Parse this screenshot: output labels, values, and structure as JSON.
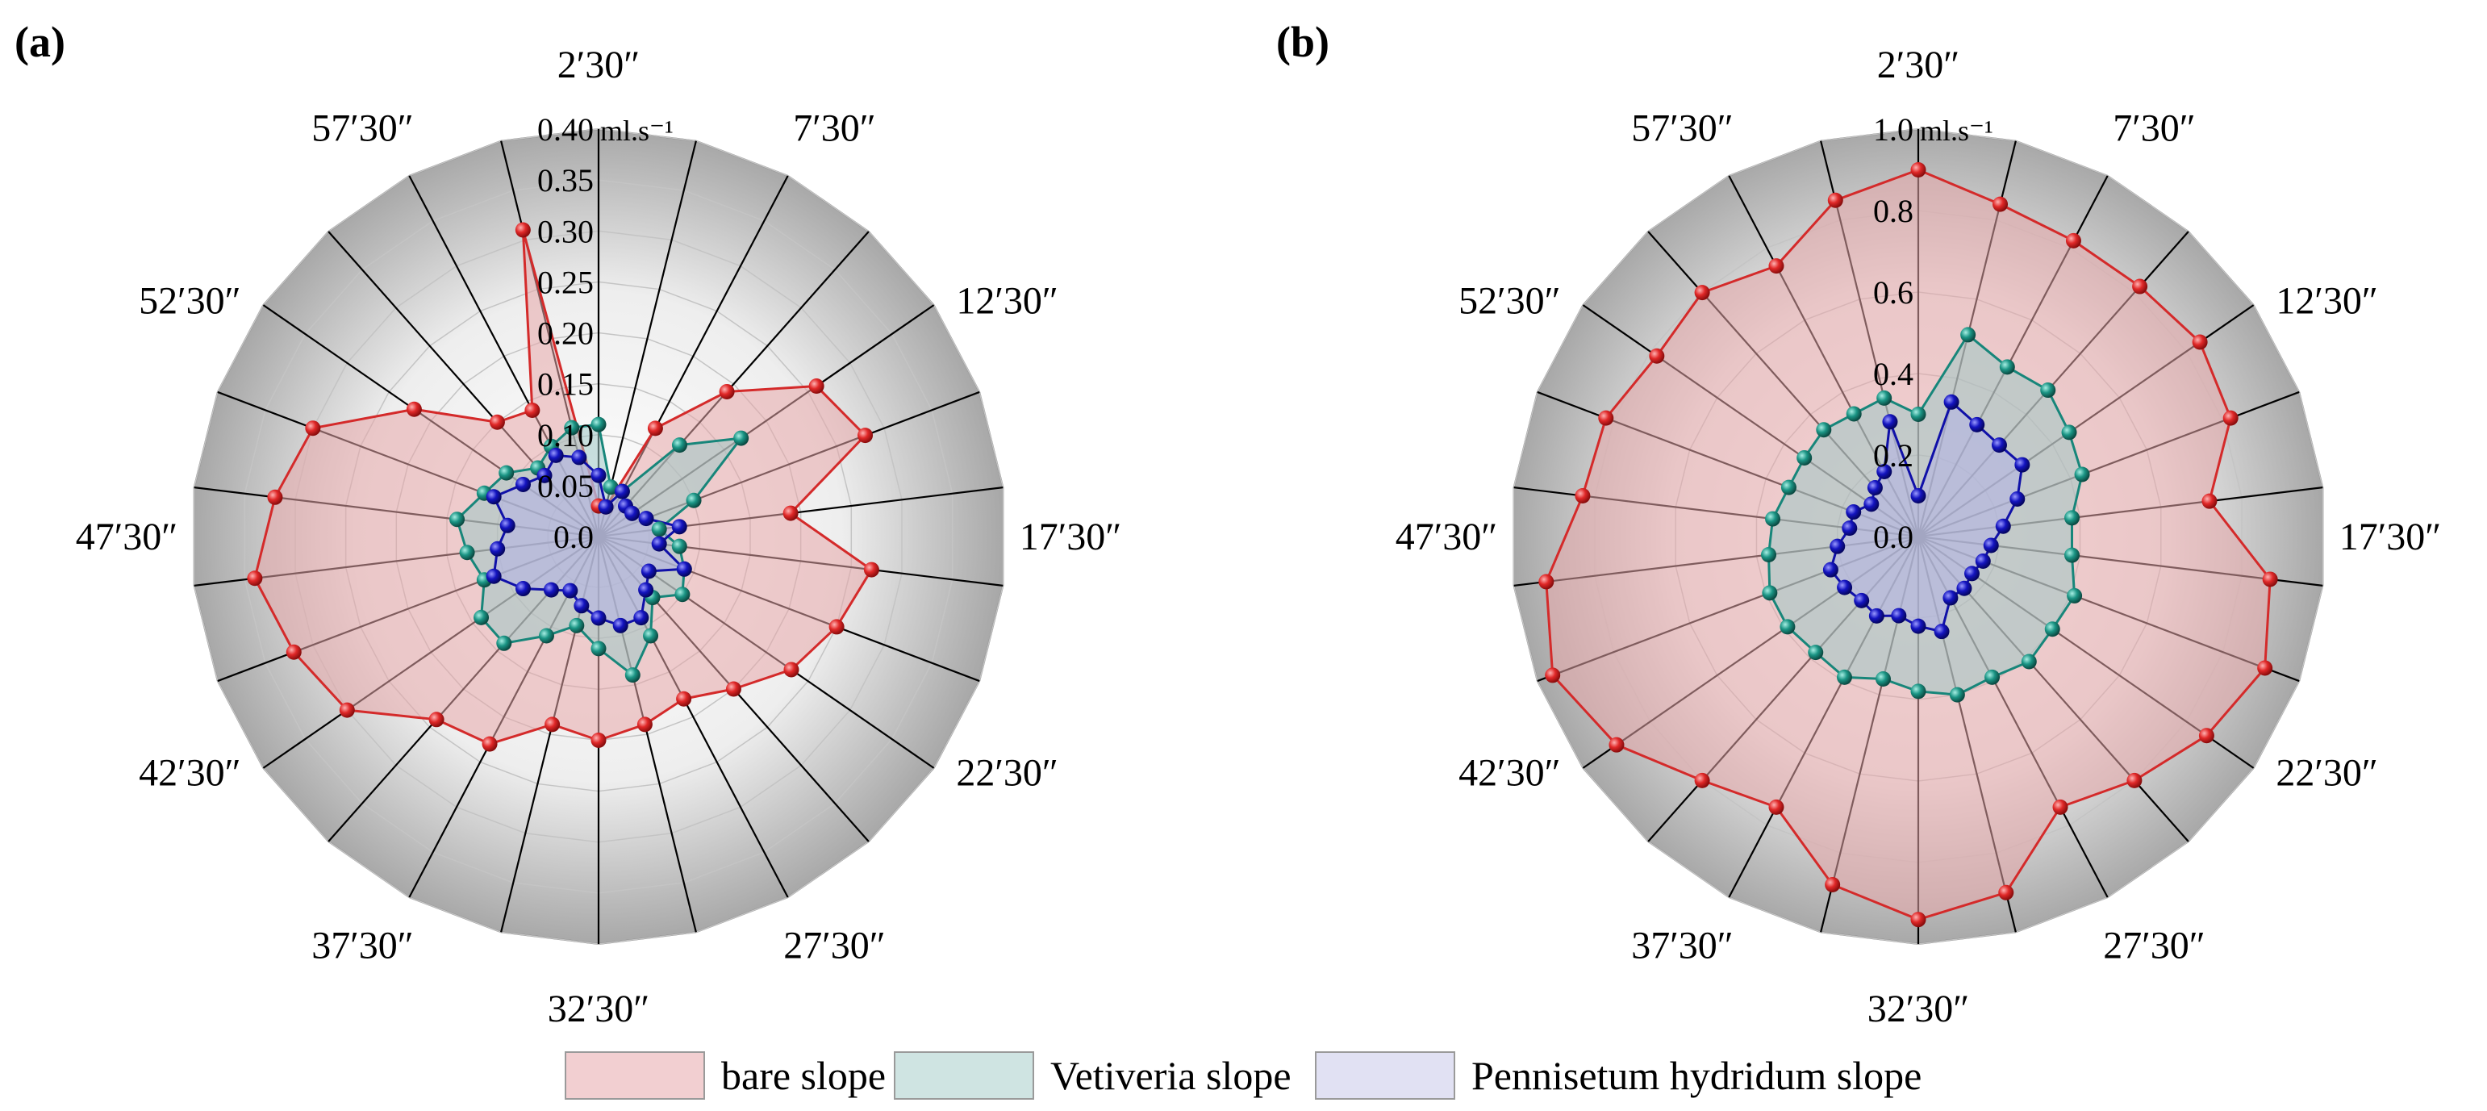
{
  "chart_data": [
    {
      "type": "radar",
      "panel_label": "(a)",
      "unit_label": "ml.s⁻¹",
      "r_max": 0.4,
      "r_ticks": [
        "0.0",
        "0.05",
        "0.10",
        "0.15",
        "0.20",
        "0.25",
        "0.30",
        "0.35",
        "0.40"
      ],
      "direction_labels": [
        "2′30″",
        "7′30″",
        "12′30″",
        "17′30″",
        "22′30″",
        "27′30″",
        "32′30″",
        "37′30″",
        "42′30″",
        "47′30″",
        "52′30″",
        "57′30″"
      ],
      "series": [
        {
          "name": "bare slope",
          "values": [
            0.03,
            0.03,
            0.12,
            0.19,
            0.26,
            0.28,
            0.19,
            0.27,
            0.25,
            0.23,
            0.2,
            0.18,
            0.19,
            0.2,
            0.19,
            0.23,
            0.24,
            0.3,
            0.32,
            0.34,
            0.32,
            0.3,
            0.22,
            0.15,
            0.14,
            0.31
          ]
        },
        {
          "name": "Vetiveria slope",
          "values": [
            0.11,
            0.05,
            0.05,
            0.12,
            0.17,
            0.1,
            0.06,
            0.08,
            0.09,
            0.1,
            0.08,
            0.11,
            0.14,
            0.11,
            0.09,
            0.11,
            0.14,
            0.14,
            0.12,
            0.13,
            0.14,
            0.12,
            0.11,
            0.09,
            0.1,
            0.11
          ]
        },
        {
          "name": "Pennisetum hydridum slope",
          "values": [
            0.06,
            0.03,
            0.05,
            0.04,
            0.04,
            0.05,
            0.08,
            0.06,
            0.09,
            0.06,
            0.07,
            0.09,
            0.09,
            0.08,
            0.07,
            0.06,
            0.07,
            0.09,
            0.11,
            0.1,
            0.09,
            0.11,
            0.09,
            0.08,
            0.09,
            0.08
          ]
        }
      ]
    },
    {
      "type": "radar",
      "panel_label": "(b)",
      "unit_label": "ml.s⁻¹",
      "r_max": 1.0,
      "r_ticks": [
        "0.0",
        "0.2",
        "0.4",
        "0.6",
        "0.8",
        "1.0"
      ],
      "direction_labels": [
        "2′30″",
        "7′30″",
        "12′30″",
        "17′30″",
        "22′30″",
        "27′30″",
        "32′30″",
        "37′30″",
        "42′30″",
        "47′30″",
        "52′30″",
        "57′30″"
      ],
      "series": [
        {
          "name": "bare slope",
          "values": [
            0.9,
            0.84,
            0.82,
            0.82,
            0.84,
            0.82,
            0.72,
            0.87,
            0.91,
            0.86,
            0.8,
            0.75,
            0.9,
            0.94,
            0.88,
            0.75,
            0.8,
            0.9,
            0.96,
            0.92,
            0.83,
            0.82,
            0.78,
            0.8,
            0.75,
            0.85
          ]
        },
        {
          "name": "Vetiveria slope",
          "values": [
            0.3,
            0.51,
            0.47,
            0.48,
            0.45,
            0.43,
            0.38,
            0.38,
            0.41,
            0.4,
            0.41,
            0.39,
            0.4,
            0.38,
            0.36,
            0.39,
            0.38,
            0.39,
            0.39,
            0.37,
            0.36,
            0.34,
            0.34,
            0.35,
            0.34,
            0.35
          ]
        },
        {
          "name": "Pennisetum hydridum slope",
          "values": [
            0.1,
            0.34,
            0.31,
            0.3,
            0.31,
            0.26,
            0.21,
            0.18,
            0.17,
            0.16,
            0.17,
            0.17,
            0.24,
            0.22,
            0.2,
            0.22,
            0.21,
            0.22,
            0.23,
            0.2,
            0.17,
            0.17,
            0.14,
            0.16,
            0.18,
            0.29
          ]
        }
      ]
    }
  ],
  "legend": [
    {
      "label": "bare slope"
    },
    {
      "label": "Vetiveria slope"
    },
    {
      "label": "Pennisetum hydridum slope"
    }
  ],
  "colors": {
    "bare_line": "#d42a2a",
    "bare_fill": "#e7a7aa",
    "vetiveria_line": "#17867a",
    "vetiveria_fill": "#9ec9c6",
    "pennisetum_line": "#1010a8",
    "pennisetum_fill": "#b3b3e6"
  }
}
